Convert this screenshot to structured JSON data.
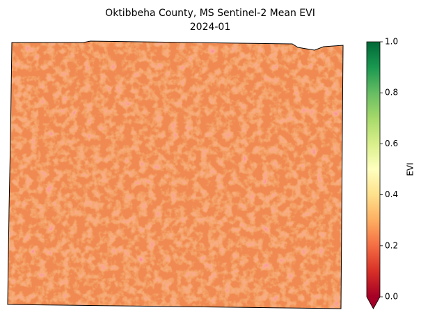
{
  "chart_data": {
    "type": "map",
    "title": "Oktibbeha County, MS Sentinel-2 Mean EVI",
    "subtitle": "2024-01",
    "colorbar": {
      "label": "EVI",
      "lim": [
        0,
        1
      ],
      "ticks": [
        {
          "value": 0,
          "label": "0.0"
        },
        0.2,
        0.4,
        0.6,
        0.8,
        {
          "value": 1,
          "label": "1.0"
        }
      ],
      "colors": [
        "#a50026",
        "#d73027",
        "#f46d43",
        "#fdae61",
        "#fee08b",
        "#ffffbf",
        "#d9ef8b",
        "#a6d96a",
        "#66bd63",
        "#1a9850",
        "#006837"
      ],
      "extend": "min"
    }
  }
}
